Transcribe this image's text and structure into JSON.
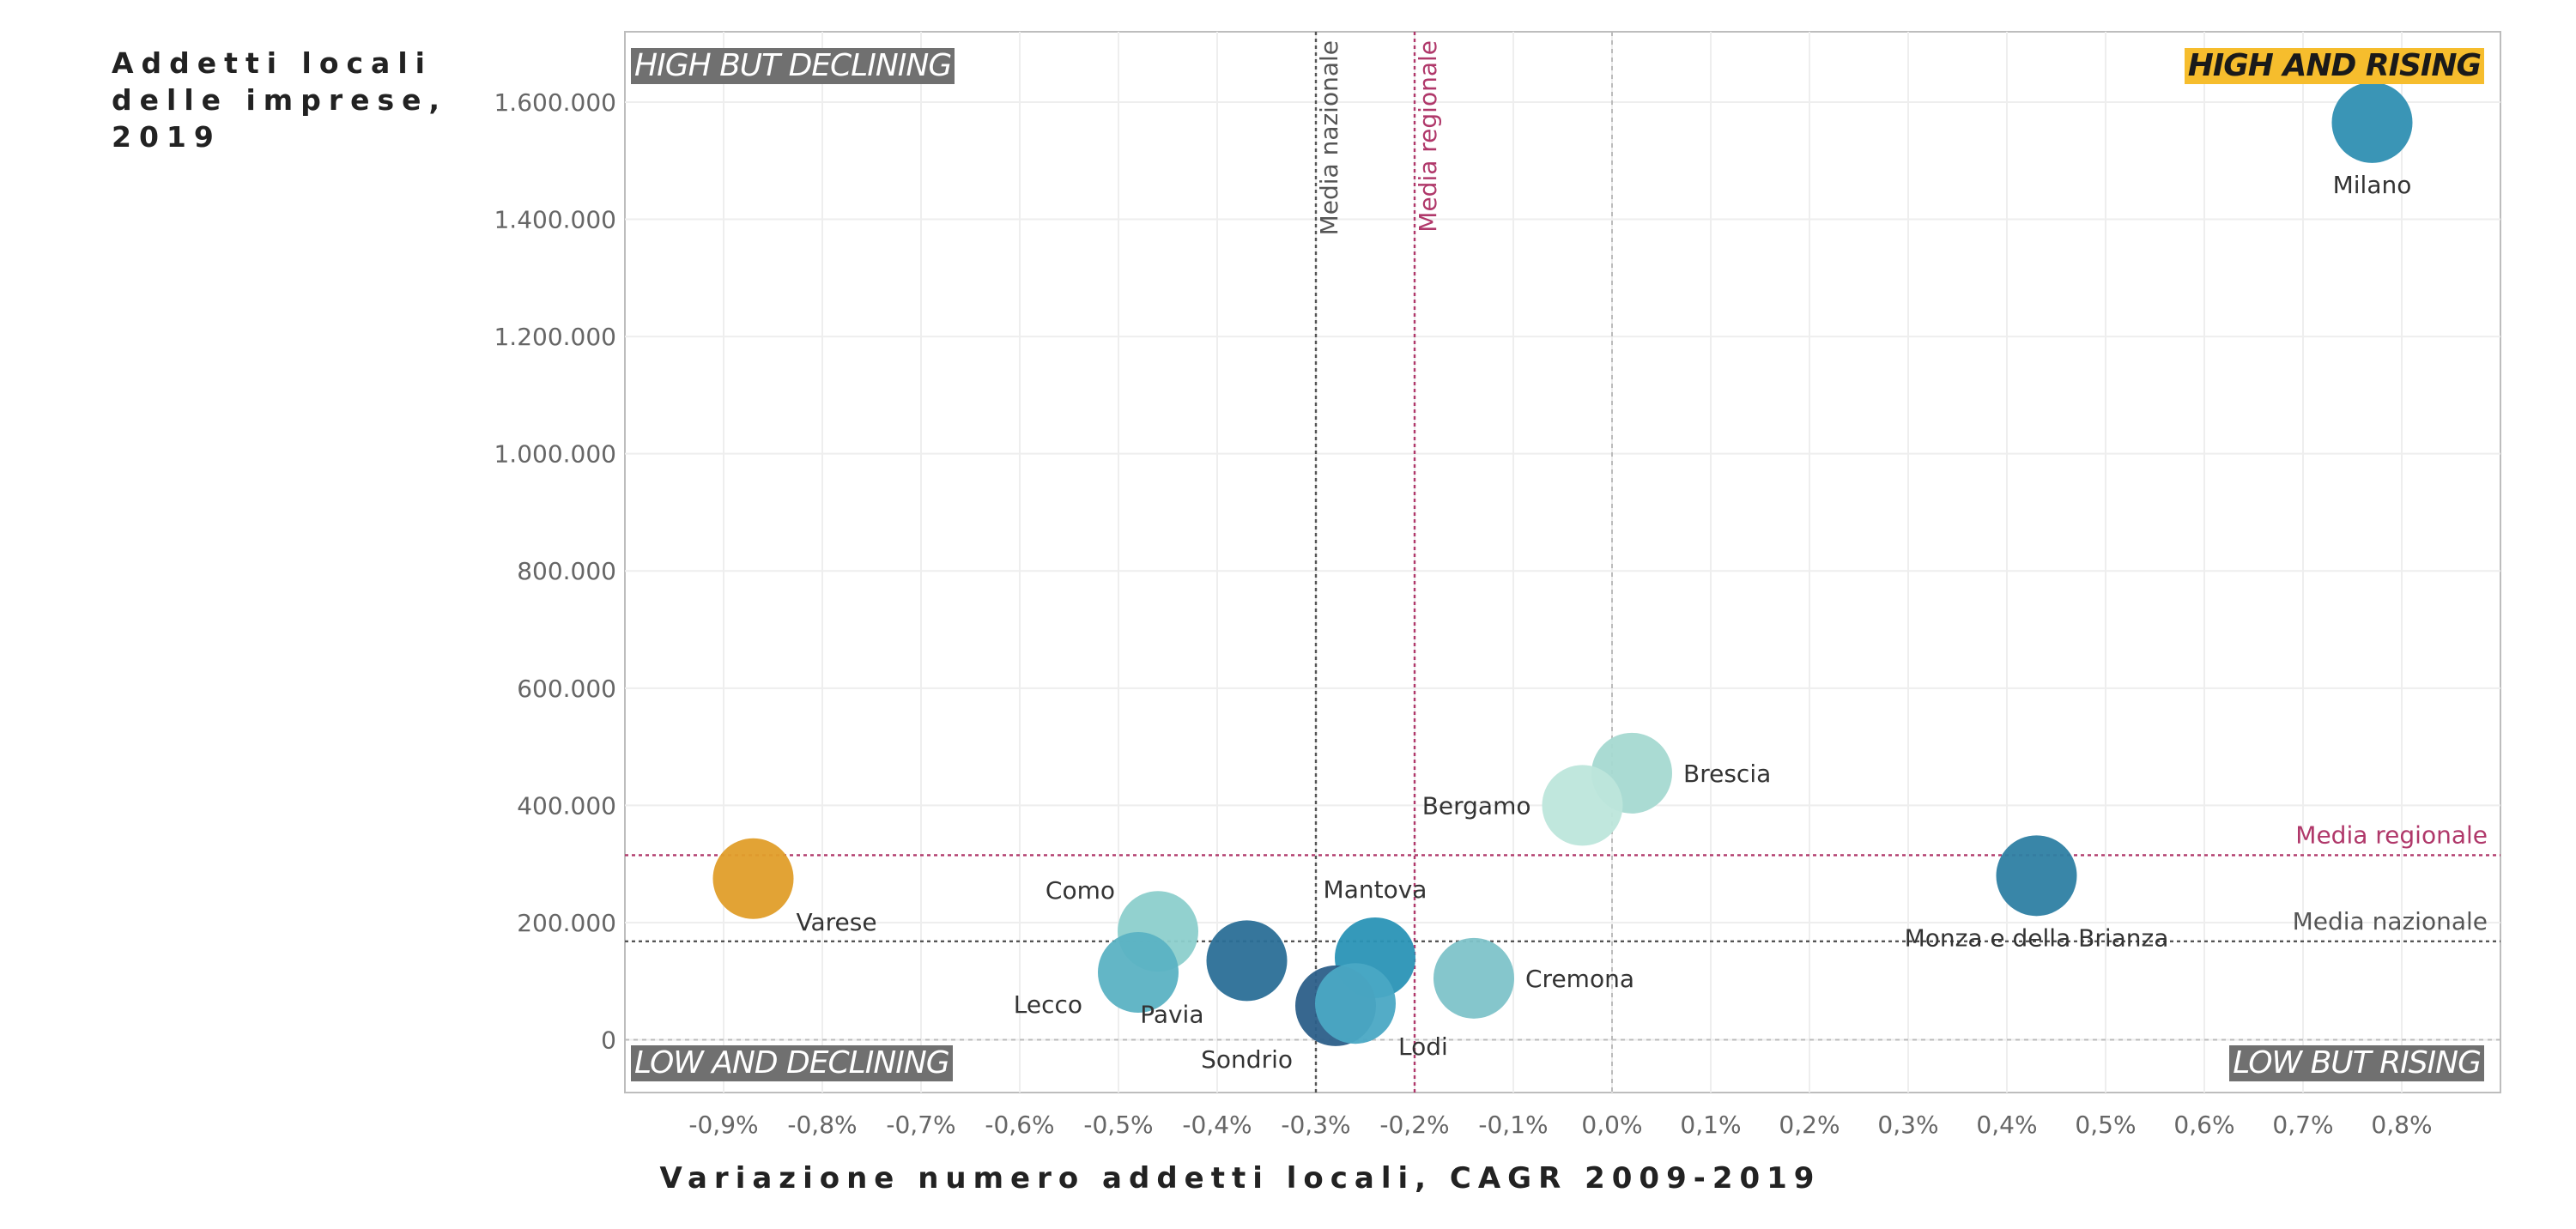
{
  "chart_data": {
    "type": "scatter",
    "title": "",
    "ylabel": "Addetti locali delle imprese, 2019",
    "xlabel": "Variazione numero addetti locali, CAGR 2009-2019",
    "xlim": [
      -0.01,
      0.009
    ],
    "ylim": [
      -90000,
      1720000
    ],
    "xticks": [
      -0.009,
      -0.008,
      -0.007,
      -0.006,
      -0.005,
      -0.004,
      -0.003,
      -0.002,
      -0.001,
      0,
      0.001,
      0.002,
      0.003,
      0.004,
      0.005,
      0.006,
      0.007,
      0.008
    ],
    "xtick_labels": [
      "-0,9%",
      "-0,8%",
      "-0,7%",
      "-0,6%",
      "-0,5%",
      "-0,4%",
      "-0,3%",
      "-0,2%",
      "-0,1%",
      "0,0%",
      "0,1%",
      "0,2%",
      "0,3%",
      "0,4%",
      "0,5%",
      "0,6%",
      "0,7%",
      "0,8%"
    ],
    "yticks": [
      0,
      200000,
      400000,
      600000,
      800000,
      1000000,
      1200000,
      1400000,
      1600000
    ],
    "ytick_labels": [
      "0",
      "200.000",
      "400.000",
      "600.000",
      "800.000",
      "1.000.000",
      "1.200.000",
      "1.400.000",
      "1.600.000"
    ],
    "grid": true,
    "points": [
      {
        "label": "Milano",
        "x": 0.0077,
        "y": 1565000,
        "color": "#2f8fb2",
        "label_pos": "below"
      },
      {
        "label": "Brescia",
        "x": 0.0002,
        "y": 455000,
        "color": "#a5d9d1",
        "label_pos": "right"
      },
      {
        "label": "Bergamo",
        "x": -0.0003,
        "y": 400000,
        "color": "#bde6db",
        "label_pos": "left"
      },
      {
        "label": "Monza e della Brianza",
        "x": 0.0043,
        "y": 280000,
        "color": "#2e7fa3",
        "label_pos": "below"
      },
      {
        "label": "Varese",
        "x": -0.0087,
        "y": 275000,
        "color": "#e09e2a",
        "label_pos": "below-right"
      },
      {
        "label": "Como",
        "x": -0.0046,
        "y": 185000,
        "color": "#8ccfcc",
        "label_pos": "upper-left"
      },
      {
        "label": "Mantova",
        "x": -0.0024,
        "y": 140000,
        "color": "#2a94b6",
        "label_pos": "above"
      },
      {
        "label": "Pavia",
        "x": -0.0037,
        "y": 135000,
        "color": "#2b6f97",
        "label_pos": "below-left"
      },
      {
        "label": "Lecco",
        "x": -0.0048,
        "y": 115000,
        "color": "#5bb2c3",
        "label_pos": "lower-left"
      },
      {
        "label": "Cremona",
        "x": -0.0014,
        "y": 105000,
        "color": "#7ec3c9",
        "label_pos": "right"
      },
      {
        "label": "Sondrio",
        "x": -0.0028,
        "y": 58000,
        "color": "#2c5f89",
        "label_pos": "below-left"
      },
      {
        "label": "Lodi",
        "x": -0.0026,
        "y": 62000,
        "color": "#4aa8c4",
        "label_pos": "below-right"
      }
    ],
    "reference_lines": [
      {
        "axis": "x",
        "value": -0.003,
        "label": "Media nazionale",
        "color": "#555555"
      },
      {
        "axis": "x",
        "value": -0.002,
        "label": "Media regionale",
        "color": "#b0386a"
      },
      {
        "axis": "x",
        "value": 0,
        "label": "",
        "color": "#bbbbbb"
      },
      {
        "axis": "y",
        "value": 315000,
        "label": "Media regionale",
        "color": "#b0386a"
      },
      {
        "axis": "y",
        "value": 168000,
        "label": "Media nazionale",
        "color": "#555555"
      },
      {
        "axis": "y",
        "value": 0,
        "label": "",
        "color": "#bbbbbb"
      }
    ],
    "quadrants": {
      "top_left": "HIGH BUT DECLINING",
      "top_right": "HIGH AND RISING",
      "bottom_left": "LOW AND DECLINING",
      "bottom_right": "LOW BUT RISING"
    }
  }
}
